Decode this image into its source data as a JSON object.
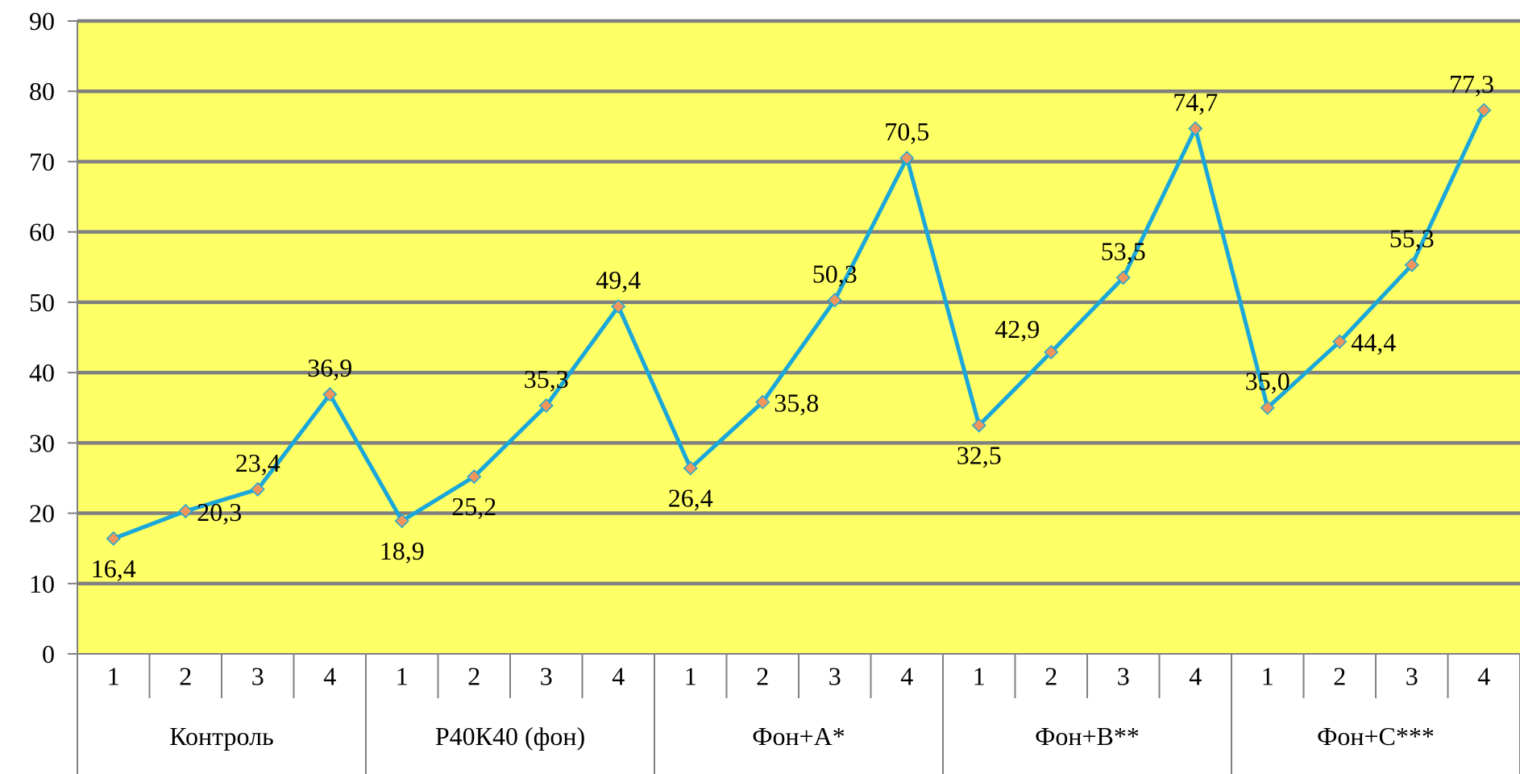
{
  "chart_data": {
    "type": "line",
    "categories": [
      "1",
      "2",
      "3",
      "4",
      "1",
      "2",
      "3",
      "4",
      "1",
      "2",
      "3",
      "4",
      "1",
      "2",
      "3",
      "4",
      "1",
      "2",
      "3",
      "4"
    ],
    "groups": [
      {
        "label": "Контроль",
        "span": 4
      },
      {
        "label": "Р40К40 (фон)",
        "span": 4
      },
      {
        "label": "Фон+A*",
        "span": 4
      },
      {
        "label": "Фон+B**",
        "span": 4
      },
      {
        "label": "Фон+C***",
        "span": 4
      }
    ],
    "values": [
      16.4,
      20.3,
      23.4,
      36.9,
      18.9,
      25.2,
      35.3,
      49.4,
      26.4,
      35.8,
      50.3,
      70.5,
      32.5,
      42.9,
      53.5,
      74.7,
      35.0,
      44.4,
      55.3,
      77.3
    ],
    "data_labels": [
      "16,4",
      "20,3",
      "23,4",
      "36,9",
      "18,9",
      "25,2",
      "35,3",
      "49,4",
      "26,4",
      "35,8",
      "50,3",
      "70,5",
      "32,5",
      "42,9",
      "53,5",
      "74,7",
      "35,0",
      "44,4",
      "55,3",
      "77,3"
    ],
    "label_positions": [
      "below",
      "right",
      "above",
      "above",
      "below",
      "below",
      "above",
      "above",
      "below",
      "right",
      "above",
      "above",
      "below",
      "left",
      "above",
      "above",
      "above",
      "right",
      "above",
      "above"
    ],
    "ylim": [
      0,
      90
    ],
    "yticks": [
      0,
      10,
      20,
      30,
      40,
      50,
      60,
      70,
      80,
      90
    ],
    "grid": true,
    "title": "",
    "xlabel": "",
    "ylabel": "",
    "colors": {
      "plot_background": "#FFFF66",
      "line": "#1AA7D9",
      "marker_fill": "#F2955C",
      "marker_stroke": "#1AA7D9",
      "gridline": "#808080"
    }
  }
}
